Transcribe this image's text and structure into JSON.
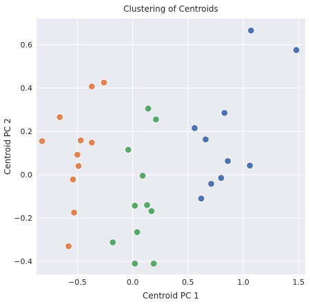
{
  "chart_data": {
    "type": "scatter",
    "title": "Clustering of Centroids",
    "xlabel": "Centroid PC 1",
    "ylabel": "Centroid PC 2",
    "xlim": [
      -0.87,
      1.56
    ],
    "ylim": [
      -0.46,
      0.72
    ],
    "xticks": [
      -0.5,
      0.0,
      0.5,
      1.0,
      1.5
    ],
    "xtick_labels": [
      "−0.5",
      "0.0",
      "0.5",
      "1.0",
      "1.5"
    ],
    "yticks": [
      -0.4,
      -0.2,
      0.0,
      0.2,
      0.4,
      0.6
    ],
    "ytick_labels": [
      "−0.4",
      "−0.2",
      "0.0",
      "0.2",
      "0.4",
      "0.6"
    ],
    "grid": true,
    "background": "#eaeaf2",
    "series": [
      {
        "color": "#4c72b0",
        "points": [
          [
            1.07,
            0.665
          ],
          [
            1.48,
            0.575
          ],
          [
            0.83,
            0.285
          ],
          [
            0.56,
            0.215
          ],
          [
            0.66,
            0.163
          ],
          [
            0.86,
            0.063
          ],
          [
            1.06,
            0.042
          ],
          [
            0.8,
            -0.015
          ],
          [
            0.71,
            -0.042
          ],
          [
            0.62,
            -0.11
          ]
        ]
      },
      {
        "color": "#dd8452",
        "points": [
          [
            -0.26,
            0.425
          ],
          [
            -0.37,
            0.407
          ],
          [
            -0.66,
            0.265
          ],
          [
            -0.82,
            0.155
          ],
          [
            -0.47,
            0.158
          ],
          [
            -0.37,
            0.148
          ],
          [
            -0.5,
            0.092
          ],
          [
            -0.49,
            0.04
          ],
          [
            -0.54,
            -0.022
          ],
          [
            -0.53,
            -0.175
          ],
          [
            -0.58,
            -0.33
          ]
        ]
      },
      {
        "color": "#55a868",
        "points": [
          [
            0.14,
            0.305
          ],
          [
            0.21,
            0.255
          ],
          [
            -0.04,
            0.115
          ],
          [
            0.09,
            -0.005
          ],
          [
            0.02,
            -0.143
          ],
          [
            0.13,
            -0.14
          ],
          [
            0.17,
            -0.168
          ],
          [
            0.04,
            -0.265
          ],
          [
            -0.18,
            -0.312
          ],
          [
            0.02,
            -0.41
          ],
          [
            0.19,
            -0.41
          ]
        ]
      }
    ]
  }
}
